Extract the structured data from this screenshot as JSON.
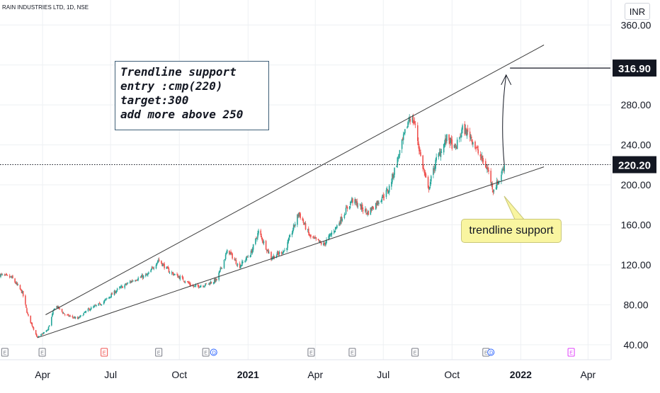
{
  "header": {
    "symbol": "RAIN INDUSTRIES LTD, 1D, NSE",
    "currency": "INR"
  },
  "price_labels": {
    "target": "316.90",
    "current": "220.20"
  },
  "annotations": {
    "note_lines": [
      "Trendline support",
      "entry :cmp(220)",
      "target:300",
      "add more above 250"
    ],
    "callout": "trendline support"
  },
  "colors": {
    "up_candle": "#26a69a",
    "down_candle": "#ef5350",
    "trendline": "#3c3c3c",
    "label_bg": "#131722",
    "callout_bg": "#f9f5a0",
    "note_border": "#3f5f78",
    "grid": "#eef0f3",
    "dividend_marker": "#2962ff",
    "future_earnings_marker": "#e040fb"
  },
  "chart_data": {
    "type": "candlestick",
    "title": "RAIN INDUSTRIES LTD, 1D, NSE",
    "currency": "INR",
    "ylim": [
      25,
      385
    ],
    "y_ticks": [
      40,
      80,
      120,
      160,
      200,
      240,
      280,
      320,
      360
    ],
    "y_tick_labels": [
      "40.00",
      "80.00",
      "120.00",
      "160.00",
      "200.00",
      "240.00",
      "280.00",
      "",
      "360.00"
    ],
    "xlim": [
      "2020-02-04",
      "2022-05-01"
    ],
    "x_ticks": [
      {
        "date": "2020-04-01",
        "label": "Apr",
        "bold": false
      },
      {
        "date": "2020-07-01",
        "label": "Jul",
        "bold": false
      },
      {
        "date": "2020-10-01",
        "label": "Oct",
        "bold": false
      },
      {
        "date": "2021-01-01",
        "label": "2021",
        "bold": true
      },
      {
        "date": "2021-04-01",
        "label": "Apr",
        "bold": false
      },
      {
        "date": "2021-07-01",
        "label": "Jul",
        "bold": false
      },
      {
        "date": "2021-10-01",
        "label": "Oct",
        "bold": false
      },
      {
        "date": "2022-01-01",
        "label": "2022",
        "bold": true
      },
      {
        "date": "2022-04-01",
        "label": "Apr",
        "bold": false
      }
    ],
    "price_path": [
      [
        "2020-02-04",
        110
      ],
      [
        "2020-02-20",
        107
      ],
      [
        "2020-03-05",
        92
      ],
      [
        "2020-03-12",
        70
      ],
      [
        "2020-03-25",
        47
      ],
      [
        "2020-04-08",
        55
      ],
      [
        "2020-04-18",
        80
      ],
      [
        "2020-05-01",
        70
      ],
      [
        "2020-05-18",
        66
      ],
      [
        "2020-06-01",
        75
      ],
      [
        "2020-06-20",
        82
      ],
      [
        "2020-07-10",
        95
      ],
      [
        "2020-08-01",
        105
      ],
      [
        "2020-08-20",
        110
      ],
      [
        "2020-09-03",
        125
      ],
      [
        "2020-09-18",
        113
      ],
      [
        "2020-10-05",
        106
      ],
      [
        "2020-10-20",
        98
      ],
      [
        "2020-11-05",
        100
      ],
      [
        "2020-11-20",
        105
      ],
      [
        "2020-12-05",
        135
      ],
      [
        "2020-12-20",
        118
      ],
      [
        "2021-01-05",
        132
      ],
      [
        "2021-01-15",
        153
      ],
      [
        "2021-02-01",
        127
      ],
      [
        "2021-02-20",
        135
      ],
      [
        "2021-03-10",
        172
      ],
      [
        "2021-03-25",
        148
      ],
      [
        "2021-04-12",
        140
      ],
      [
        "2021-05-01",
        160
      ],
      [
        "2021-05-20",
        185
      ],
      [
        "2021-06-10",
        172
      ],
      [
        "2021-06-25",
        184
      ],
      [
        "2021-07-08",
        195
      ],
      [
        "2021-07-20",
        225
      ],
      [
        "2021-08-05",
        268
      ],
      [
        "2021-08-12",
        262
      ],
      [
        "2021-08-20",
        228
      ],
      [
        "2021-08-30",
        195
      ],
      [
        "2021-09-10",
        225
      ],
      [
        "2021-09-25",
        248
      ],
      [
        "2021-10-05",
        235
      ],
      [
        "2021-10-15",
        256
      ],
      [
        "2021-10-25",
        250
      ],
      [
        "2021-11-05",
        232
      ],
      [
        "2021-11-18",
        215
      ],
      [
        "2021-11-25",
        195
      ],
      [
        "2021-12-03",
        205
      ],
      [
        "2021-12-10",
        220
      ]
    ],
    "trendlines": [
      {
        "name": "upper",
        "from": [
          "2020-04-05",
          70
        ],
        "to": [
          "2022-02-01",
          340
        ]
      },
      {
        "name": "lower",
        "from": [
          "2020-03-25",
          47
        ],
        "to": [
          "2022-02-01",
          218
        ]
      }
    ],
    "horizontal_lines": [
      {
        "name": "current",
        "price": 220.2,
        "style": "dotted"
      },
      {
        "name": "target",
        "price": 316.9,
        "style": "solid",
        "from": "2021-12-10"
      }
    ],
    "projection_arrow": {
      "from": [
        "2021-12-10",
        220
      ],
      "to": [
        "2021-12-20",
        310
      ]
    },
    "events": [
      {
        "date": "2020-02-10",
        "kind": "E",
        "color": "#787b86"
      },
      {
        "date": "2020-03-31",
        "kind": "E",
        "color": "#787b86"
      },
      {
        "date": "2020-06-22",
        "kind": "E",
        "color": "#ef5350"
      },
      {
        "date": "2020-09-03",
        "kind": "E",
        "color": "#787b86"
      },
      {
        "date": "2020-11-05",
        "kind": "E",
        "color": "#787b86"
      },
      {
        "date": "2020-11-16",
        "kind": "D",
        "color": "#2962ff"
      },
      {
        "date": "2021-03-26",
        "kind": "E",
        "color": "#787b86"
      },
      {
        "date": "2021-05-20",
        "kind": "E",
        "color": "#787b86"
      },
      {
        "date": "2021-08-12",
        "kind": "E",
        "color": "#787b86"
      },
      {
        "date": "2021-11-15",
        "kind": "E",
        "color": "#787b86"
      },
      {
        "date": "2021-11-22",
        "kind": "D",
        "color": "#2962ff"
      },
      {
        "date": "2022-03-09",
        "kind": "E",
        "color": "#e040fb"
      }
    ]
  }
}
